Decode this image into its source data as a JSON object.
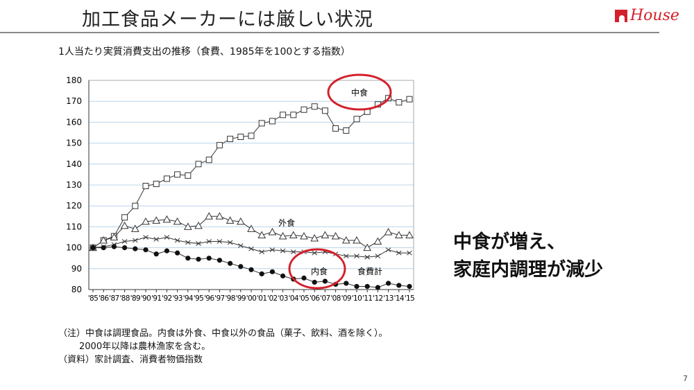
{
  "header": {
    "title": "加工食品メーカーには厳しい状況",
    "logo_text": "House"
  },
  "callout": {
    "line1": "中食が増え、",
    "line2": "家庭内調理が減少"
  },
  "notes": {
    "line1": "（注）中食は調理食品。内食は外食、中食以外の食品（菓子、飲料、酒を除く）。",
    "line2": "2000年以降は農林漁家を含む。",
    "line3": "（資料）家計調査、消費者物価指数"
  },
  "page_number": "7",
  "colors": {
    "highlight": "#d4202a",
    "grid": "#b8d4ea",
    "line": "#333333"
  },
  "chart_data": {
    "type": "line",
    "title": "1人当たり実質消費支出の推移（食費、1985年を100とする指数）",
    "categories": [
      "'85",
      "'86",
      "'87",
      "'88",
      "'89",
      "'90",
      "'91",
      "'92",
      "'93",
      "'94",
      "'95",
      "'96",
      "'97",
      "'98",
      "'99",
      "'00",
      "'01",
      "'02",
      "'03",
      "'04",
      "'05",
      "'06",
      "'07",
      "'08",
      "'09",
      "'10",
      "'11",
      "'12",
      "'13",
      "'14",
      "'15"
    ],
    "ylim": [
      80,
      180
    ],
    "yticks": [
      80,
      90,
      100,
      110,
      120,
      130,
      140,
      150,
      160,
      170,
      180
    ],
    "grid": true,
    "series": [
      {
        "name": "中食",
        "marker": "square",
        "values": [
          100,
          103.5,
          105.5,
          114.5,
          120,
          129.5,
          130.5,
          133,
          135,
          134.5,
          140,
          142,
          149,
          152,
          153,
          153.5,
          159.5,
          160.5,
          163.5,
          163.5,
          166,
          167.5,
          165.5,
          157,
          156,
          161.5,
          165,
          168.5,
          171.5,
          169.5,
          171
        ]
      },
      {
        "name": "外食",
        "marker": "triangle",
        "values": [
          100,
          103.5,
          105,
          110.5,
          109,
          112.5,
          113,
          113.5,
          112.5,
          110,
          110.5,
          115,
          115,
          113,
          112.5,
          109,
          106,
          107.5,
          105.5,
          106,
          105.5,
          104.5,
          106,
          105.5,
          103.5,
          103.5,
          100,
          103,
          107.5,
          106,
          106
        ]
      },
      {
        "name": "食費計",
        "marker": "x",
        "values": [
          100,
          100.5,
          101.5,
          103,
          103.5,
          105,
          104,
          105,
          103.5,
          102.5,
          102,
          103,
          103,
          102.5,
          101,
          99.5,
          98,
          99,
          98.5,
          98,
          98,
          97.5,
          98,
          97,
          96,
          96,
          95.5,
          96,
          99,
          97.5,
          97.5
        ]
      },
      {
        "name": "内食",
        "marker": "dot",
        "values": [
          100,
          100,
          100.5,
          100,
          99.5,
          99,
          97,
          98.5,
          97.5,
          95,
          94.5,
          95,
          94,
          92.5,
          91,
          89.5,
          87.5,
          88.5,
          86.5,
          85,
          85.5,
          83.5,
          84,
          82.5,
          83,
          81.5,
          81.5,
          81,
          83,
          82,
          81.5
        ]
      }
    ],
    "highlighted": [
      "中食",
      "内食"
    ]
  }
}
